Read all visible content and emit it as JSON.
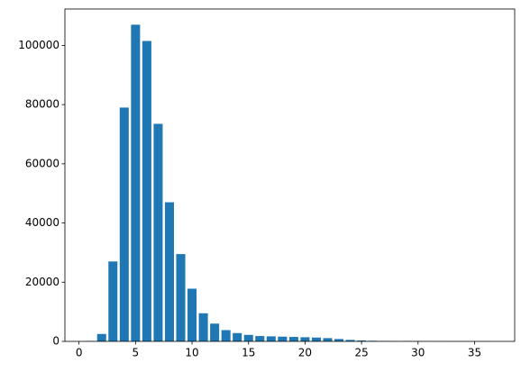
{
  "chart_data": {
    "type": "bar",
    "color": "#1f77b4",
    "x": [
      1,
      2,
      3,
      4,
      5,
      6,
      7,
      8,
      9,
      10,
      11,
      12,
      13,
      14,
      15,
      16,
      17,
      18,
      19,
      20,
      21,
      22,
      23,
      24,
      25,
      26,
      27,
      28,
      29,
      30,
      31,
      32,
      33,
      34,
      35,
      36
    ],
    "values": [
      100,
      2500,
      27000,
      79000,
      107000,
      101500,
      73500,
      47000,
      29500,
      17800,
      9500,
      6000,
      3800,
      2800,
      2200,
      1800,
      1700,
      1600,
      1500,
      1400,
      1300,
      1100,
      800,
      500,
      300,
      200,
      150,
      100,
      100,
      80,
      60,
      50,
      40,
      30,
      20,
      10
    ],
    "xlim": [
      -1.25,
      38.55
    ],
    "xticks": [
      0,
      5,
      10,
      15,
      20,
      25,
      30,
      35
    ],
    "ylim": [
      0,
      112300
    ],
    "yticks": [
      0,
      20000,
      40000,
      60000,
      80000,
      100000
    ]
  }
}
